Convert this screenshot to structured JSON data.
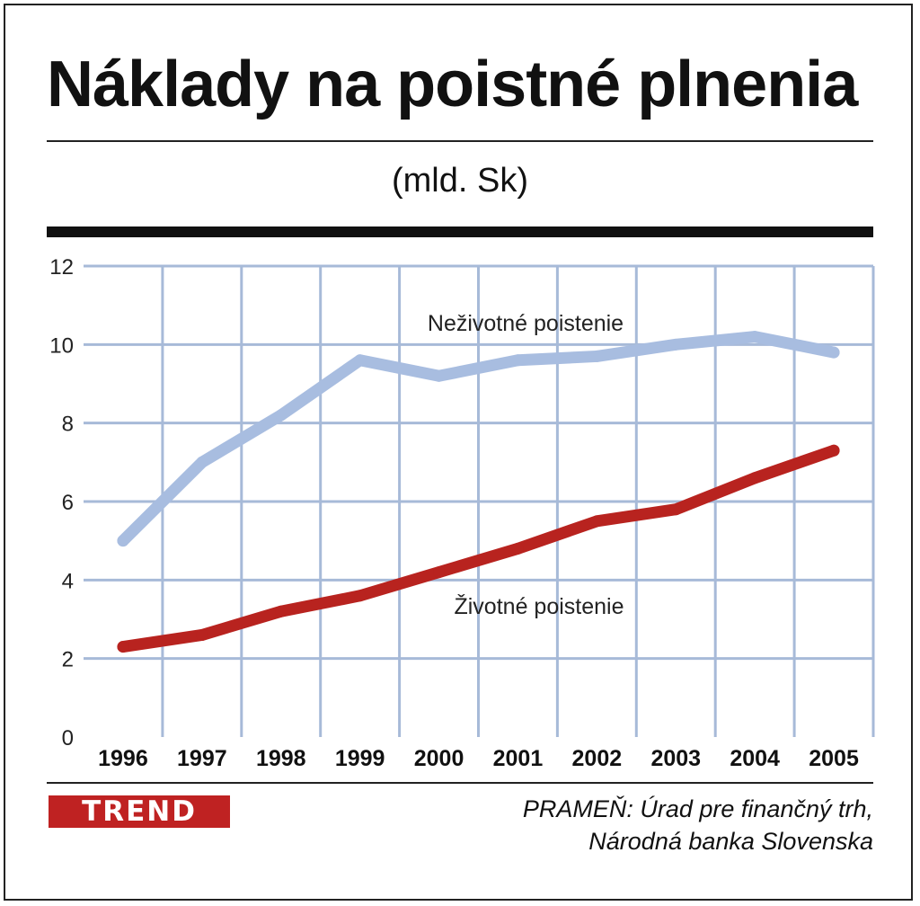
{
  "header": {
    "title": "Náklady na poistné plnenia",
    "unit": "(mld. Sk)"
  },
  "footer": {
    "logo_text": "TREND",
    "source_line1": "PRAMEŇ: Úrad pre finančný trh,",
    "source_line2": "Národná banka Slovenska"
  },
  "colors": {
    "nonlife": "#a8bde0",
    "life": "#b8231f",
    "grid": "#a7bad8",
    "logo_bg": "#bf2222"
  },
  "chart_data": {
    "type": "line",
    "x": [
      "1996",
      "1997",
      "1998",
      "1999",
      "2000",
      "2001",
      "2002",
      "2003",
      "2004",
      "2005"
    ],
    "ylim": [
      0,
      12
    ],
    "yticks": [
      "0",
      "2",
      "4",
      "6",
      "8",
      "10",
      "12"
    ],
    "grid": true,
    "series": [
      {
        "name": "Neživotné poistenie",
        "values": [
          5.0,
          7.0,
          8.2,
          9.6,
          9.2,
          9.6,
          9.7,
          10.0,
          10.2,
          9.8
        ]
      },
      {
        "name": "Životné poistenie",
        "values": [
          2.3,
          2.6,
          3.2,
          3.6,
          4.2,
          4.8,
          5.5,
          5.8,
          6.6,
          7.3
        ]
      }
    ]
  }
}
